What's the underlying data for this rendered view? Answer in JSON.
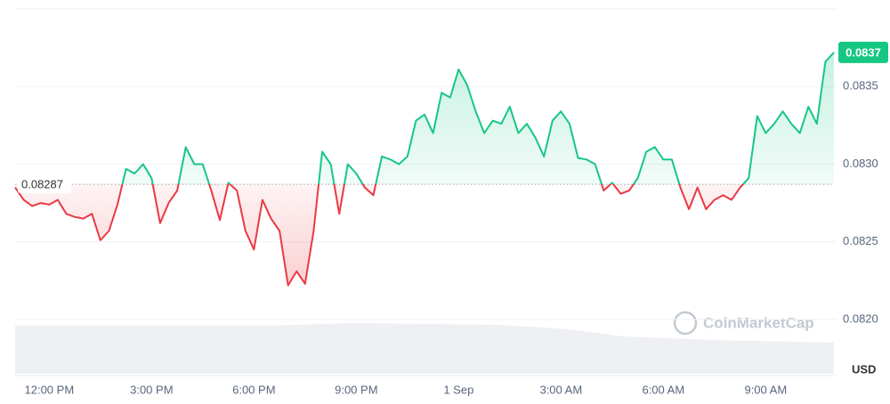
{
  "chart_data": {
    "type": "line",
    "categories": [
      null,
      null,
      null,
      null,
      "12:00 PM",
      null,
      null,
      null,
      null,
      null,
      null,
      null,
      null,
      null,
      null,
      null,
      "3:00 PM",
      null,
      null,
      null,
      null,
      null,
      null,
      null,
      null,
      null,
      null,
      null,
      "6:00 PM",
      null,
      null,
      null,
      null,
      null,
      null,
      null,
      null,
      null,
      null,
      null,
      "9:00 PM",
      null,
      null,
      null,
      null,
      null,
      null,
      null,
      null,
      null,
      null,
      null,
      "1 Sep",
      null,
      null,
      null,
      null,
      null,
      null,
      null,
      null,
      null,
      null,
      null,
      "3:00 AM",
      null,
      null,
      null,
      null,
      null,
      null,
      null,
      null,
      null,
      null,
      null,
      "6:00 AM",
      null,
      null,
      null,
      null,
      null,
      null,
      null,
      null,
      null,
      null,
      null,
      "9:00 AM",
      null,
      null,
      null,
      null,
      null,
      null,
      null,
      null
    ],
    "values": [
      0.08285,
      0.08277,
      0.08273,
      0.08275,
      0.08274,
      0.08277,
      0.08268,
      0.08266,
      0.08265,
      0.08268,
      0.08251,
      0.08257,
      0.08274,
      0.08297,
      0.08294,
      0.083,
      0.08291,
      0.08262,
      0.08275,
      0.08283,
      0.08311,
      0.083,
      0.083,
      0.08283,
      0.08264,
      0.08288,
      0.08283,
      0.08257,
      0.08245,
      0.08277,
      0.08265,
      0.08257,
      0.08222,
      0.08231,
      0.08223,
      0.08257,
      0.08308,
      0.083,
      0.08268,
      0.083,
      0.08294,
      0.08285,
      0.0828,
      0.08305,
      0.08303,
      0.083,
      0.08305,
      0.08328,
      0.08332,
      0.0832,
      0.08346,
      0.08343,
      0.08361,
      0.08351,
      0.08334,
      0.0832,
      0.08328,
      0.08326,
      0.08337,
      0.0832,
      0.08326,
      0.08317,
      0.08305,
      0.08328,
      0.08334,
      0.08326,
      0.08304,
      0.08303,
      0.083,
      0.08283,
      0.08288,
      0.08281,
      0.08283,
      0.08291,
      0.08308,
      0.08311,
      0.08303,
      0.08303,
      0.08285,
      0.08271,
      0.08285,
      0.08271,
      0.08277,
      0.0828,
      0.08277,
      0.08285,
      0.08291,
      0.08331,
      0.0832,
      0.08326,
      0.08334,
      0.08326,
      0.0832,
      0.08337,
      0.08326,
      0.08366,
      0.08372
    ],
    "current_price_label": "0.0837",
    "reference": {
      "value": 0.08287,
      "label": "0.08287"
    },
    "up_color": "#16c784",
    "down_color": "#ea3943",
    "ylim": [
      0.082,
      0.084
    ],
    "yticks": [
      {
        "value": 0.082,
        "label": "0.0820"
      },
      0.0825,
      {
        "value": 0.083,
        "label": "0.0830"
      },
      0.0835
    ],
    "grid": true,
    "currency": "USD",
    "watermark": "CoinMarketCap"
  }
}
